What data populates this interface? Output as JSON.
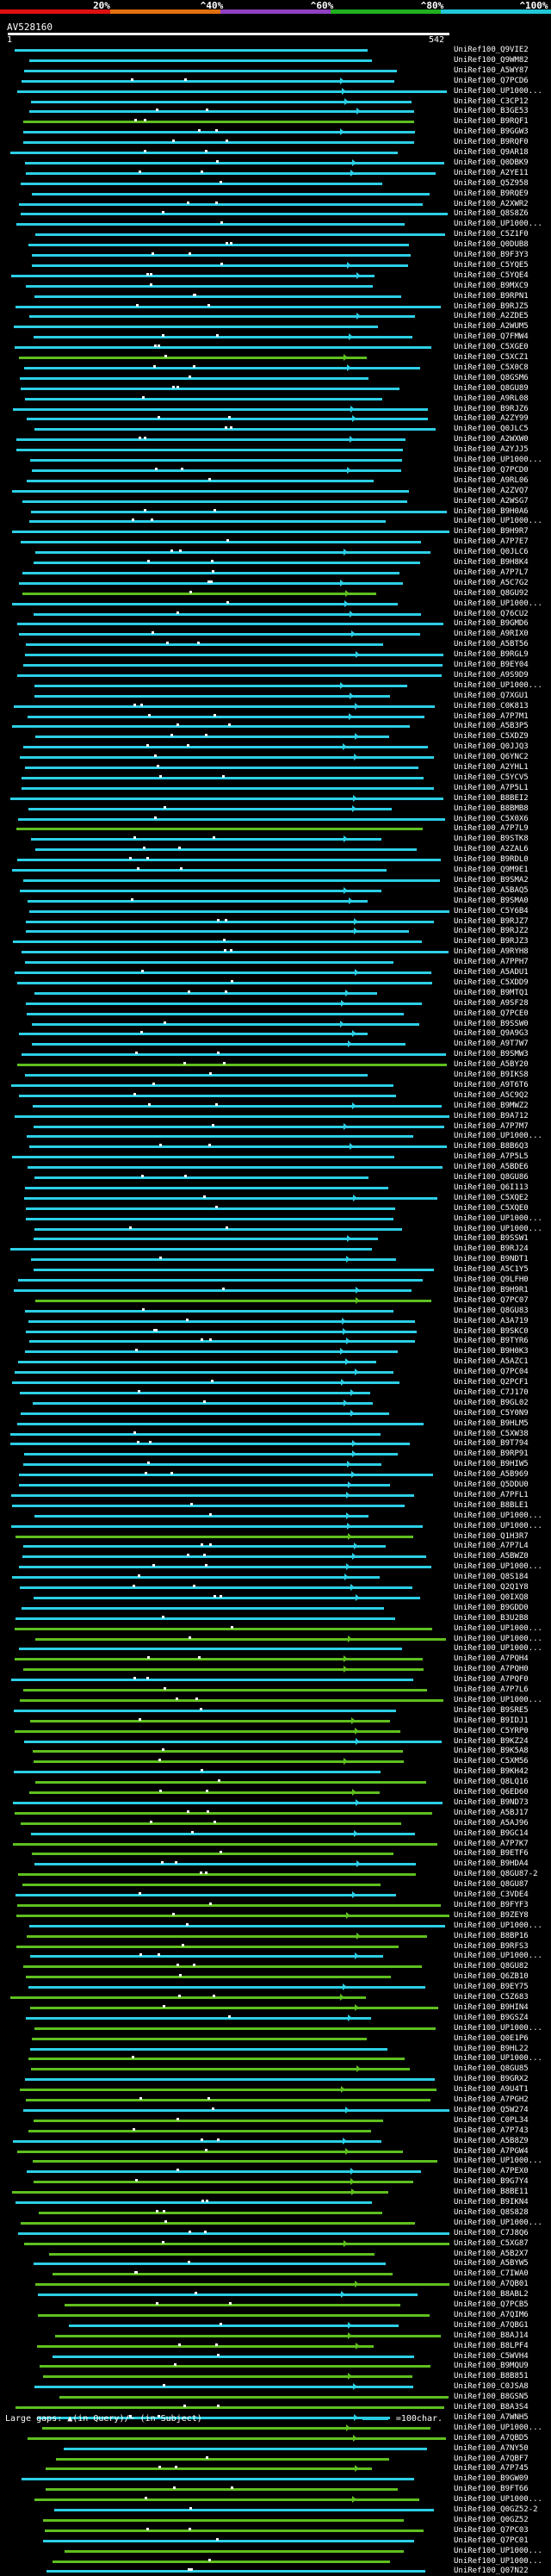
{
  "scale": {
    "labels": [
      "20%",
      "^40%",
      "^60%",
      "^80%",
      "^100%"
    ],
    "segments": [
      "#e01010",
      "#e07010",
      "#9040c0",
      "#20b020",
      "#20c8d8"
    ]
  },
  "query": {
    "label": "AV528160",
    "start": "1",
    "end": "542"
  },
  "legend": {
    "gaps_text": "Large gaps: ▲(in Query)/~ (in Subject)",
    "scale_text": "=100char.",
    "color": "#28c8e0"
  },
  "colors": {
    "cyan": "#2ccfe6",
    "green": "#5fbf1f",
    "white": "#ffffff"
  },
  "hits": [
    "UniRef100_Q9VIE2",
    "UniRef100_Q9WM82",
    "UniRef100_A5WY87",
    "UniRef100_Q7PCD6",
    "UniRef100_UP1000...",
    "UniRef100_C3CP12",
    "UniRef100_B3GE53",
    "UniRef100_B9RQF1",
    "UniRef100_B9GGW3",
    "UniRef100_B9RQF0",
    "UniRef100_Q9AR18",
    "UniRef100_Q0DBK9",
    "UniRef100_A2YE11",
    "UniRef100_Q5Z958",
    "UniRef100_B9RQE9",
    "UniRef100_A2XWR2",
    "UniRef100_Q8S8Z6",
    "UniRef100_UP1000...",
    "UniRef100_C5Z1F0",
    "UniRef100_Q0DUB8",
    "UniRef100_B9F3Y3",
    "UniRef100_C5YQE5",
    "UniRef100_C5YQE4",
    "UniRef100_B9MXC9",
    "UniRef100_B9RPN1",
    "UniRef100_B9RJZ5",
    "UniRef100_A2ZDE5",
    "UniRef100_A2WUM5",
    "UniRef100_Q7FMW4",
    "UniRef100_C5XGE0",
    "UniRef100_C5XCZ1",
    "UniRef100_C5X0C8",
    "UniRef100_Q8GSM6",
    "UniRef100_Q8GU89",
    "UniRef100_A9RL08",
    "UniRef100_B9RJZ6",
    "UniRef100_A2ZY99",
    "UniRef100_Q0JLC5",
    "UniRef100_A2WXW0",
    "UniRef100_A2YJJ5",
    "UniRef100_UP1000...",
    "UniRef100_Q7PCD0",
    "UniRef100_A9RL06",
    "UniRef100_A2ZVQ7",
    "UniRef100_A2WSG7",
    "UniRef100_B9H0A6",
    "UniRef100_UP1000...",
    "UniRef100_B9H9R7",
    "UniRef100_A7P7E7",
    "UniRef100_Q0JLC6",
    "UniRef100_B9H8K4",
    "UniRef100_A7P7L7",
    "UniRef100_A5C7G2",
    "UniRef100_Q8GU92",
    "UniRef100_UP1000...",
    "UniRef100_Q76CU2",
    "UniRef100_B9GMD6",
    "UniRef100_A9RIX0",
    "UniRef100_A5BT56",
    "UniRef100_B9RGL9",
    "UniRef100_B9EY04",
    "UniRef100_A9S9D9",
    "UniRef100_UP1000...",
    "UniRef100_Q7XGU1",
    "UniRef100_C0K813",
    "UniRef100_A7P7M1",
    "UniRef100_A5B3P5",
    "UniRef100_C5XDZ9",
    "UniRef100_Q0JJQ3",
    "UniRef100_Q6YNC2",
    "UniRef100_A2YHL1",
    "UniRef100_C5YCV5",
    "UniRef100_A7P5L1",
    "UniRef100_B8BEI2",
    "UniRef100_B8BMB8",
    "UniRef100_C5X0X6",
    "UniRef100_A7P7L9",
    "UniRef100_B9STK8",
    "UniRef100_A2ZAL6",
    "UniRef100_B9RDL0",
    "UniRef100_Q9M9E1",
    "UniRef100_B9SMA2",
    "UniRef100_A5BAQ5",
    "UniRef100_B9SMA0",
    "UniRef100_C5Y6B4",
    "UniRef100_B9RJZ7",
    "UniRef100_B9RJZ2",
    "UniRef100_B9RJZ3",
    "UniRef100_A9RYH8",
    "UniRef100_A7PPH7",
    "UniRef100_A5ADU1",
    "UniRef100_C5XDD9",
    "UniRef100_B9MTQ1",
    "UniRef100_A9SF28",
    "UniRef100_Q7PCE0",
    "UniRef100_B9SSW0",
    "UniRef100_Q9A9G3",
    "UniRef100_A9T7W7",
    "UniRef100_B9SMW3",
    "UniRef100_A5BY20",
    "UniRef100_B9IKS8",
    "UniRef100_A9T6T6",
    "UniRef100_A5C9Q2",
    "UniRef100_B9MWZ2",
    "UniRef100_B9A712",
    "UniRef100_A7P7M7",
    "UniRef100_UP1000...",
    "UniRef100_B8B6Q3",
    "UniRef100_A7P5L5",
    "UniRef100_A5BDE6",
    "UniRef100_Q8GU86",
    "UniRef100_Q6I113",
    "UniRef100_C5XQE2",
    "UniRef100_C5XQE0",
    "UniRef100_UP1000...",
    "UniRef100_UP1000...",
    "UniRef100_B9SSW1",
    "UniRef100_B9RJ24",
    "UniRef100_B9NDT1",
    "UniRef100_A5C1Y5",
    "UniRef100_Q9LFH0",
    "UniRef100_B9H9R1",
    "UniRef100_Q7PC07",
    "UniRef100_Q8GU83",
    "UniRef100_A3A719",
    "UniRef100_B9SKC0",
    "UniRef100_B9TYR6",
    "UniRef100_B9H0K3",
    "UniRef100_A5AZC1",
    "UniRef100_Q7PC04",
    "UniRef100_Q2PCF1",
    "UniRef100_C7J170",
    "UniRef100_B9GL02",
    "UniRef100_C5Y0N9",
    "UniRef100_B9HLM5",
    "UniRef100_C5XW38",
    "UniRef100_B9T794",
    "UniRef100_B9RP91",
    "UniRef100_B9HIW5",
    "UniRef100_A5B969",
    "UniRef100_Q5DDU0",
    "UniRef100_A7PFL1",
    "UniRef100_B8BLE1",
    "UniRef100_UP1000...",
    "UniRef100_UP1000...",
    "UniRef100_Q1H3R7",
    "UniRef100_A7P7L4",
    "UniRef100_A5BWZ0",
    "UniRef100_UP1000...",
    "UniRef100_Q8S184",
    "UniRef100_Q2Q1Y8",
    "UniRef100_Q0IXQ8",
    "UniRef100_B9GDD0",
    "UniRef100_B3U2B8",
    "UniRef100_UP1000...",
    "UniRef100_UP1000...",
    "UniRef100_UP1000...",
    "UniRef100_A7PQH4",
    "UniRef100_A7PQH0",
    "UniRef100_A7PQF0",
    "UniRef100_A7P7L6",
    "UniRef100_UP1000...",
    "UniRef100_B9SRE5",
    "UniRef100_B9IDJ1",
    "UniRef100_C5YRP0",
    "UniRef100_B9KZ24",
    "UniRef100_B9K5A8",
    "UniRef100_C5XM56",
    "UniRef100_B9KH42",
    "UniRef100_Q8LQ16",
    "UniRef100_Q6ED60",
    "UniRef100_B9ND73",
    "UniRef100_A5BJ17",
    "UniRef100_A5AJ96",
    "UniRef100_B9GC14",
    "UniRef100_A7P7K7",
    "UniRef100_B9ETF6",
    "UniRef100_B9HDA4",
    "UniRef100_Q8GU87-2",
    "UniRef100_Q8GU87",
    "UniRef100_C3VDE4",
    "UniRef100_B9FYF3",
    "UniRef100_B9ZEY8",
    "UniRef100_UP1000...",
    "UniRef100_B8BP16",
    "UniRef100_B9RFS3",
    "UniRef100_UP1000...",
    "UniRef100_Q8GU82",
    "UniRef100_Q6ZB10",
    "UniRef100_B9EY75",
    "UniRef100_C5Z683",
    "UniRef100_B9HIN4",
    "UniRef100_B9GSZ4",
    "UniRef100_UP1000...",
    "UniRef100_Q0E1P6",
    "UniRef100_B9HL22",
    "UniRef100_UP1000...",
    "UniRef100_Q8GU85",
    "UniRef100_B9GRX2",
    "UniRef100_A9U4T1",
    "UniRef100_A7PGH2",
    "UniRef100_Q5W274",
    "UniRef100_C0PL34",
    "UniRef100_A7P743",
    "UniRef100_A5B8Z9",
    "UniRef100_A7PGW4",
    "UniRef100_UP1000...",
    "UniRef100_A7PEX0",
    "UniRef100_B9G7Y4",
    "UniRef100_B8BE11",
    "UniRef100_B9IKN4",
    "UniRef100_Q8S828",
    "UniRef100_UP1000...",
    "UniRef100_C7J8Q6",
    "UniRef100_C5XG87",
    "UniRef100_A5B2X7",
    "UniRef100_A5BYW5",
    "UniRef100_C7IWA0",
    "UniRef100_A7QB01",
    "UniRef100_B8ABL2",
    "UniRef100_Q7PCB5",
    "UniRef100_A7QIM6",
    "UniRef100_A7QBG1",
    "UniRef100_B8AJ14",
    "UniRef100_B8LPF4",
    "UniRef100_C5WVH4",
    "UniRef100_B9MQU9",
    "UniRef100_B8B851",
    "UniRef100_C0JSA8",
    "UniRef100_B8GSN5",
    "UniRef100_B8A3S4",
    "UniRef100_A7WNH5",
    "UniRef100_UP1000...",
    "UniRef100_A7QBD5",
    "UniRef100_A7NY50",
    "UniRef100_A7QBF7",
    "UniRef100_A7P745",
    "UniRef100_B9GW09",
    "UniRef100_B9FT66",
    "UniRef100_UP1000...",
    "UniRef100_Q0GZ52-2",
    "UniRef100_Q0GZ52",
    "UniRef100_Q7PC03",
    "UniRef100_Q7PC01",
    "UniRef100_UP1000...",
    "UniRef100_UP1000...",
    "UniRef100_Q07N22"
  ]
}
